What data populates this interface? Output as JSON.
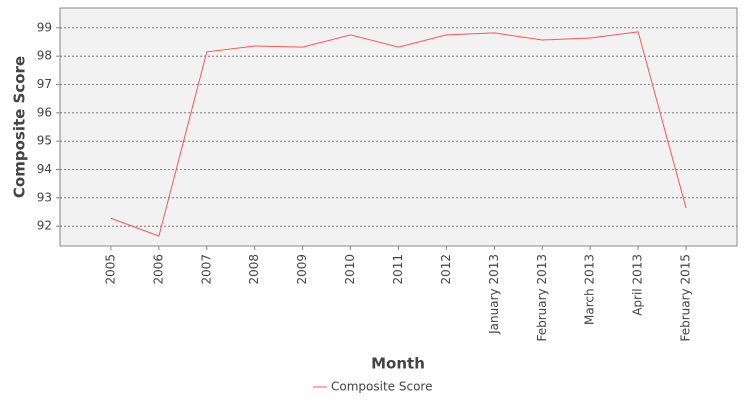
{
  "chart_data": {
    "type": "line",
    "x_label": "Month",
    "y_label": "Composite Score",
    "categories": [
      "2005",
      "2006",
      "2007",
      "2008",
      "2009",
      "2010",
      "2011",
      "2012",
      "January 2013",
      "February 2013",
      "March 2013",
      "April 2013",
      "February 2015"
    ],
    "series": [
      {
        "name": "Composite Score",
        "color": "#ff5555",
        "values": [
          92.28,
          91.65,
          98.15,
          98.36,
          98.32,
          98.75,
          98.32,
          98.75,
          98.82,
          98.57,
          98.64,
          98.86,
          92.64
        ]
      }
    ],
    "ylim": [
      91.3,
      99.7
    ],
    "yticks": [
      92,
      93,
      94,
      95,
      96,
      97,
      98,
      99
    ],
    "grid": true
  }
}
